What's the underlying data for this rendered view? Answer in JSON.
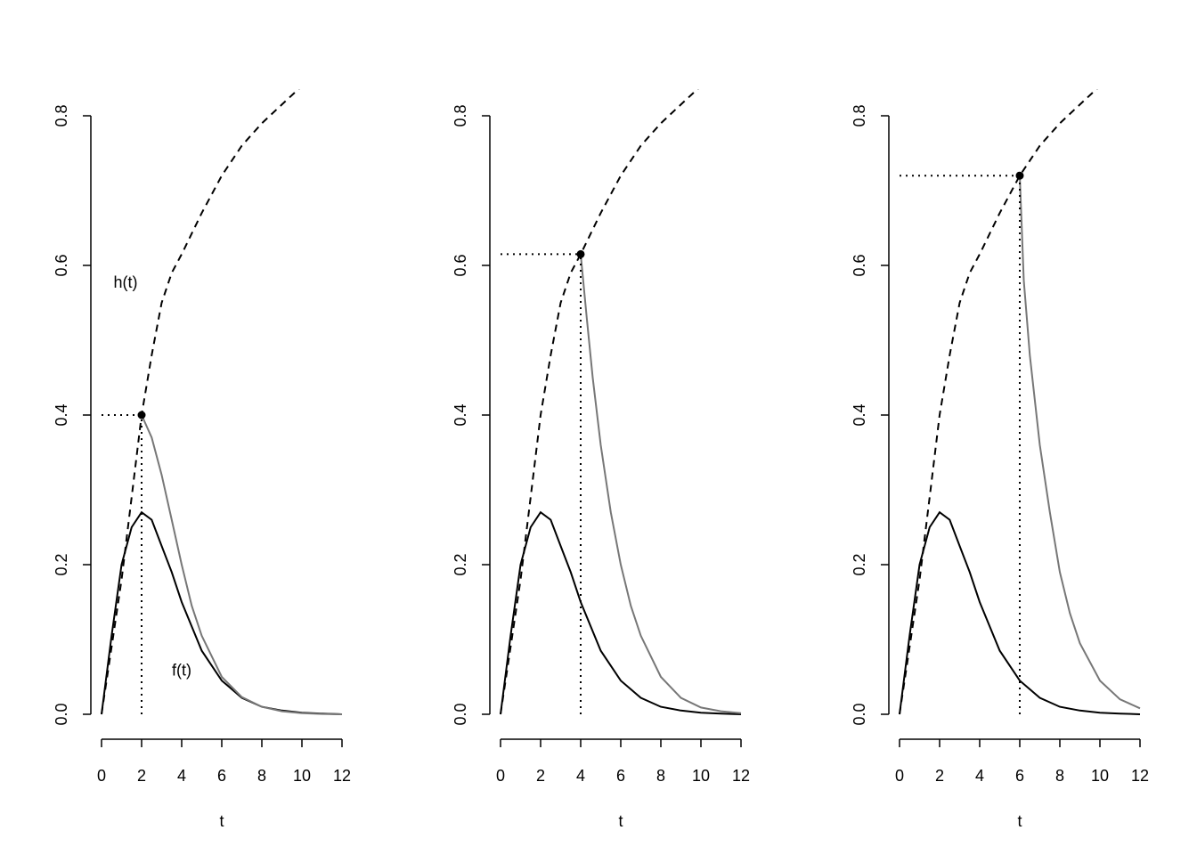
{
  "chart_data": [
    {
      "type": "line",
      "xlabel": "t",
      "ylabel": "",
      "xlim": [
        0,
        12
      ],
      "ylim": [
        0,
        0.8
      ],
      "x_ticks": [
        "0",
        "2",
        "4",
        "6",
        "8",
        "10",
        "12"
      ],
      "y_ticks": [
        "0.0",
        "0.2",
        "0.4",
        "0.6",
        "0.8"
      ],
      "annotations": [
        {
          "text": "h(t)",
          "x": 1.2,
          "y": 0.57
        },
        {
          "text": "f(t)",
          "x": 4.0,
          "y": 0.052
        }
      ],
      "marked_point": {
        "t": 2,
        "h": 0.4
      },
      "series": [
        {
          "style": "dashed",
          "color": "#000000",
          "x": [
            0,
            0.5,
            1,
            1.5,
            2,
            2.5,
            3,
            3.5,
            4,
            5,
            6,
            7,
            8,
            9,
            10,
            11
          ],
          "y": [
            0,
            0.09,
            0.18,
            0.29,
            0.4,
            0.48,
            0.55,
            0.59,
            0.615,
            0.67,
            0.72,
            0.76,
            0.79,
            0.815,
            0.84,
            0.855
          ]
        },
        {
          "style": "solid",
          "color": "#000000",
          "x": [
            0,
            0.5,
            1,
            1.5,
            2,
            2.5,
            3,
            3.5,
            4,
            5,
            6,
            7,
            8,
            9,
            10,
            11,
            12
          ],
          "y": [
            0,
            0.105,
            0.2,
            0.25,
            0.27,
            0.26,
            0.225,
            0.19,
            0.15,
            0.085,
            0.045,
            0.022,
            0.01,
            0.005,
            0.002,
            0.001,
            0
          ]
        },
        {
          "style": "solid",
          "color": "#777777",
          "x": [
            2,
            2.5,
            3,
            3.5,
            4,
            4.5,
            5,
            6,
            7,
            8,
            9,
            10,
            11,
            12
          ],
          "y": [
            0.4,
            0.37,
            0.32,
            0.26,
            0.2,
            0.145,
            0.105,
            0.05,
            0.023,
            0.01,
            0.004,
            0.0015,
            0.0005,
            0
          ]
        }
      ]
    },
    {
      "type": "line",
      "xlabel": "t",
      "ylabel": "",
      "xlim": [
        0,
        12
      ],
      "ylim": [
        0,
        0.8
      ],
      "x_ticks": [
        "0",
        "2",
        "4",
        "6",
        "8",
        "10",
        "12"
      ],
      "y_ticks": [
        "0.0",
        "0.2",
        "0.4",
        "0.6",
        "0.8"
      ],
      "annotations": [],
      "marked_point": {
        "t": 4,
        "h": 0.615
      },
      "series": [
        {
          "style": "dashed",
          "color": "#000000",
          "x": [
            0,
            0.5,
            1,
            1.5,
            2,
            2.5,
            3,
            3.5,
            4,
            5,
            6,
            7,
            8,
            9,
            10,
            11
          ],
          "y": [
            0,
            0.09,
            0.18,
            0.29,
            0.4,
            0.48,
            0.55,
            0.59,
            0.615,
            0.67,
            0.72,
            0.76,
            0.79,
            0.815,
            0.84,
            0.855
          ]
        },
        {
          "style": "solid",
          "color": "#000000",
          "x": [
            0,
            0.5,
            1,
            1.5,
            2,
            2.5,
            3,
            3.5,
            4,
            5,
            6,
            7,
            8,
            9,
            10,
            11,
            12
          ],
          "y": [
            0,
            0.105,
            0.2,
            0.25,
            0.27,
            0.26,
            0.225,
            0.19,
            0.15,
            0.085,
            0.045,
            0.022,
            0.01,
            0.005,
            0.002,
            0.001,
            0
          ]
        },
        {
          "style": "solid",
          "color": "#777777",
          "x": [
            4,
            4.3,
            4.6,
            5,
            5.5,
            6,
            6.5,
            7,
            8,
            9,
            10,
            11,
            12
          ],
          "y": [
            0.615,
            0.53,
            0.45,
            0.36,
            0.27,
            0.2,
            0.145,
            0.105,
            0.05,
            0.022,
            0.009,
            0.004,
            0.0015
          ]
        }
      ]
    },
    {
      "type": "line",
      "xlabel": "t",
      "ylabel": "",
      "xlim": [
        0,
        12
      ],
      "ylim": [
        0,
        0.8
      ],
      "x_ticks": [
        "0",
        "2",
        "4",
        "6",
        "8",
        "10",
        "12"
      ],
      "y_ticks": [
        "0.0",
        "0.2",
        "0.4",
        "0.6",
        "0.8"
      ],
      "annotations": [],
      "marked_point": {
        "t": 6,
        "h": 0.72
      },
      "series": [
        {
          "style": "dashed",
          "color": "#000000",
          "x": [
            0,
            0.5,
            1,
            1.5,
            2,
            2.5,
            3,
            3.5,
            4,
            5,
            6,
            7,
            8,
            9,
            10,
            11
          ],
          "y": [
            0,
            0.09,
            0.18,
            0.29,
            0.4,
            0.48,
            0.55,
            0.59,
            0.615,
            0.67,
            0.72,
            0.76,
            0.79,
            0.815,
            0.84,
            0.855
          ]
        },
        {
          "style": "solid",
          "color": "#000000",
          "x": [
            0,
            0.5,
            1,
            1.5,
            2,
            2.5,
            3,
            3.5,
            4,
            5,
            6,
            7,
            8,
            9,
            10,
            11,
            12
          ],
          "y": [
            0,
            0.105,
            0.2,
            0.25,
            0.27,
            0.26,
            0.225,
            0.19,
            0.15,
            0.085,
            0.045,
            0.022,
            0.01,
            0.005,
            0.002,
            0.001,
            0
          ]
        },
        {
          "style": "solid",
          "color": "#777777",
          "x": [
            6,
            6.2,
            6.5,
            7,
            7.5,
            8,
            8.5,
            9,
            10,
            11,
            12
          ],
          "y": [
            0.72,
            0.58,
            0.48,
            0.36,
            0.27,
            0.19,
            0.135,
            0.095,
            0.045,
            0.02,
            0.008
          ]
        }
      ]
    }
  ]
}
